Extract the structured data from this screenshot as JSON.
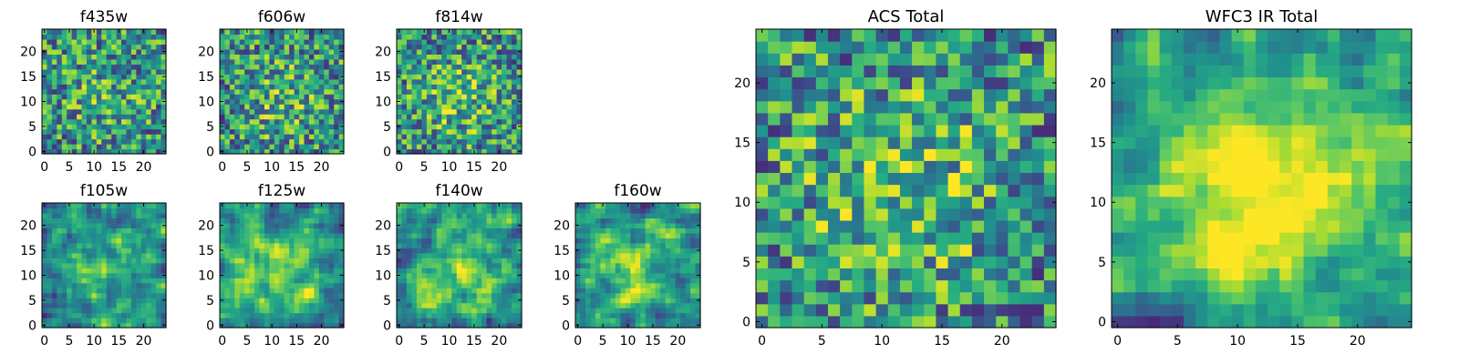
{
  "chart_data": [
    {
      "type": "heatmap",
      "title": "f435w",
      "xticks": [
        "0",
        "5",
        "10",
        "15",
        "20"
      ],
      "yticks": [
        "0",
        "5",
        "10",
        "15",
        "20"
      ],
      "grid_size": 25,
      "xlim": [
        -0.5,
        24.5
      ],
      "ylim": [
        -0.5,
        24.5
      ],
      "colormap": "viridis",
      "seed": 11,
      "smooth": 0,
      "peak": 0.15
    },
    {
      "type": "heatmap",
      "title": "f606w",
      "xticks": [
        "0",
        "5",
        "10",
        "15",
        "20"
      ],
      "yticks": [
        "0",
        "5",
        "10",
        "15",
        "20"
      ],
      "grid_size": 25,
      "xlim": [
        -0.5,
        24.5
      ],
      "ylim": [
        -0.5,
        24.5
      ],
      "colormap": "viridis",
      "seed": 23,
      "smooth": 0,
      "peak": 0.2
    },
    {
      "type": "heatmap",
      "title": "f814w",
      "xticks": [
        "0",
        "5",
        "10",
        "15",
        "20"
      ],
      "yticks": [
        "0",
        "5",
        "10",
        "15",
        "20"
      ],
      "grid_size": 25,
      "xlim": [
        -0.5,
        24.5
      ],
      "ylim": [
        -0.5,
        24.5
      ],
      "colormap": "viridis",
      "seed": 37,
      "smooth": 0,
      "peak": 0.25
    },
    {
      "type": "heatmap",
      "title": "f105w",
      "xticks": [
        "0",
        "5",
        "10",
        "15",
        "20"
      ],
      "yticks": [
        "0",
        "5",
        "10",
        "15",
        "20"
      ],
      "grid_size": 25,
      "xlim": [
        -0.5,
        24.5
      ],
      "ylim": [
        -0.5,
        24.5
      ],
      "colormap": "viridis",
      "seed": 41,
      "smooth": 1,
      "peak": 0.3
    },
    {
      "type": "heatmap",
      "title": "f125w",
      "xticks": [
        "0",
        "5",
        "10",
        "15",
        "20"
      ],
      "yticks": [
        "0",
        "5",
        "10",
        "15",
        "20"
      ],
      "grid_size": 25,
      "xlim": [
        -0.5,
        24.5
      ],
      "ylim": [
        -0.5,
        24.5
      ],
      "colormap": "viridis",
      "seed": 53,
      "smooth": 1,
      "peak": 0.3
    },
    {
      "type": "heatmap",
      "title": "f140w",
      "xticks": [
        "0",
        "5",
        "10",
        "15",
        "20"
      ],
      "yticks": [
        "0",
        "5",
        "10",
        "15",
        "20"
      ],
      "grid_size": 25,
      "xlim": [
        -0.5,
        24.5
      ],
      "ylim": [
        -0.5,
        24.5
      ],
      "colormap": "viridis",
      "seed": 67,
      "smooth": 1,
      "peak": 0.3
    },
    {
      "type": "heatmap",
      "title": "f160w",
      "xticks": [
        "0",
        "5",
        "10",
        "15",
        "20"
      ],
      "yticks": [
        "0",
        "5",
        "10",
        "15",
        "20"
      ],
      "grid_size": 25,
      "xlim": [
        -0.5,
        24.5
      ],
      "ylim": [
        -0.5,
        24.5
      ],
      "colormap": "viridis",
      "seed": 71,
      "smooth": 1,
      "peak": 0.35
    },
    {
      "type": "heatmap",
      "title": "ACS Total",
      "xticks": [
        "0",
        "5",
        "10",
        "15",
        "20"
      ],
      "yticks": [
        "0",
        "5",
        "10",
        "15",
        "20"
      ],
      "grid_size": 25,
      "xlim": [
        -0.5,
        24.5
      ],
      "ylim": [
        -0.5,
        24.5
      ],
      "colormap": "viridis",
      "seed": 83,
      "smooth": 0,
      "peak": 0.3
    },
    {
      "type": "heatmap",
      "title": "WFC3 IR Total",
      "xticks": [
        "0",
        "5",
        "10",
        "15",
        "20"
      ],
      "yticks": [
        "0",
        "5",
        "10",
        "15",
        "20"
      ],
      "grid_size": 25,
      "xlim": [
        -0.5,
        24.5
      ],
      "ylim": [
        -0.5,
        24.5
      ],
      "colormap": "viridis",
      "seed": 97,
      "smooth": 1,
      "peak": 0.55
    }
  ]
}
